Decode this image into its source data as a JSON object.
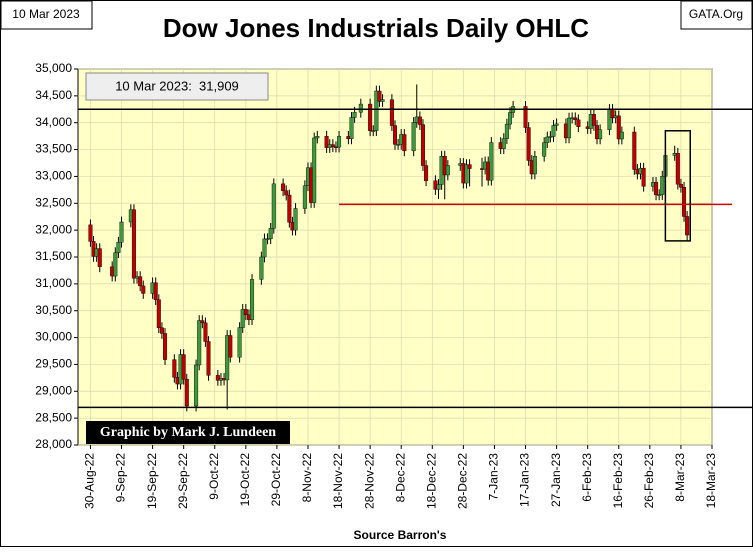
{
  "chart_data": {
    "type": "candlestick",
    "title": "Dow Jones Industrials Daily OHLC",
    "date_label": "10 Mar 2023",
    "source_label": "GATA.Org",
    "annotation": "10 Mar 2023:  31,909",
    "credit": "Graphic by Mark J. Lundeen",
    "xlabel": "Source Barron's",
    "up_color": "#3c9a3c",
    "down_color": "#c00000",
    "plot_background": "#ffffc6",
    "grid": true,
    "ylim": [
      28000,
      35000
    ],
    "yticks": [
      {
        "value": 28000,
        "label": "28,000"
      },
      {
        "value": 28500,
        "label": "28,500"
      },
      {
        "value": 29000,
        "label": "29,000"
      },
      {
        "value": 29500,
        "label": "29,500"
      },
      {
        "value": 30000,
        "label": "30,000"
      },
      {
        "value": 30500,
        "label": "30,500"
      },
      {
        "value": 31000,
        "label": "31,000"
      },
      {
        "value": 31500,
        "label": "31,500"
      },
      {
        "value": 32000,
        "label": "32,000"
      },
      {
        "value": 32500,
        "label": "32,500"
      },
      {
        "value": 33000,
        "label": "33,000"
      },
      {
        "value": 33500,
        "label": "33,500"
      },
      {
        "value": 34000,
        "label": "34,000"
      },
      {
        "value": 34500,
        "label": "34,500"
      },
      {
        "value": 35000,
        "label": "35,000"
      }
    ],
    "xlim": [
      "2022-08-26",
      "2023-03-18"
    ],
    "xticks": [
      {
        "value": "2022-08-30",
        "label": "30-Aug-22"
      },
      {
        "value": "2022-09-09",
        "label": "9-Sep-22"
      },
      {
        "value": "2022-09-19",
        "label": "19-Sep-22"
      },
      {
        "value": "2022-09-29",
        "label": "29-Sep-22"
      },
      {
        "value": "2022-10-09",
        "label": "9-Oct-22"
      },
      {
        "value": "2022-10-19",
        "label": "19-Oct-22"
      },
      {
        "value": "2022-10-29",
        "label": "29-Oct-22"
      },
      {
        "value": "2022-11-08",
        "label": "8-Nov-22"
      },
      {
        "value": "2022-11-18",
        "label": "18-Nov-22"
      },
      {
        "value": "2022-11-28",
        "label": "28-Nov-22"
      },
      {
        "value": "2022-12-08",
        "label": "8-Dec-22"
      },
      {
        "value": "2022-12-18",
        "label": "18-Dec-22"
      },
      {
        "value": "2022-12-28",
        "label": "28-Dec-22"
      },
      {
        "value": "2023-01-07",
        "label": "7-Jan-23"
      },
      {
        "value": "2023-01-17",
        "label": "17-Jan-23"
      },
      {
        "value": "2023-01-27",
        "label": "27-Jan-23"
      },
      {
        "value": "2023-02-06",
        "label": "6-Feb-23"
      },
      {
        "value": "2023-02-16",
        "label": "16-Feb-23"
      },
      {
        "value": "2023-02-26",
        "label": "26-Feb-23"
      },
      {
        "value": "2023-03-08",
        "label": "8-Mar-23"
      },
      {
        "value": "2023-03-18",
        "label": "18-Mar-23"
      }
    ],
    "hlines": [
      34250,
      28700
    ],
    "red_line": {
      "value": 32480,
      "from": "2022-11-18"
    },
    "highlight_box": {
      "x": [
        "2023-03-03",
        "2023-03-11"
      ],
      "y": [
        31800,
        33850
      ]
    },
    "x": [
      "2022-08-30",
      "2022-08-31",
      "2022-09-01",
      "2022-09-02",
      "2022-09-06",
      "2022-09-07",
      "2022-09-08",
      "2022-09-09",
      "2022-09-12",
      "2022-09-13",
      "2022-09-14",
      "2022-09-15",
      "2022-09-16",
      "2022-09-19",
      "2022-09-20",
      "2022-09-21",
      "2022-09-22",
      "2022-09-23",
      "2022-09-26",
      "2022-09-27",
      "2022-09-28",
      "2022-09-29",
      "2022-09-30",
      "2022-10-03",
      "2022-10-04",
      "2022-10-05",
      "2022-10-06",
      "2022-10-07",
      "2022-10-10",
      "2022-10-11",
      "2022-10-12",
      "2022-10-13",
      "2022-10-14",
      "2022-10-17",
      "2022-10-18",
      "2022-10-19",
      "2022-10-20",
      "2022-10-21",
      "2022-10-24",
      "2022-10-25",
      "2022-10-26",
      "2022-10-27",
      "2022-10-28",
      "2022-10-31",
      "2022-11-01",
      "2022-11-02",
      "2022-11-03",
      "2022-11-04",
      "2022-11-07",
      "2022-11-08",
      "2022-11-09",
      "2022-11-10",
      "2022-11-11",
      "2022-11-14",
      "2022-11-15",
      "2022-11-16",
      "2022-11-17",
      "2022-11-18",
      "2022-11-21",
      "2022-11-22",
      "2022-11-23",
      "2022-11-25",
      "2022-11-28",
      "2022-11-29",
      "2022-11-30",
      "2022-12-01",
      "2022-12-02",
      "2022-12-05",
      "2022-12-06",
      "2022-12-07",
      "2022-12-08",
      "2022-12-09",
      "2022-12-12",
      "2022-12-13",
      "2022-12-14",
      "2022-12-15",
      "2022-12-16",
      "2022-12-19",
      "2022-12-20",
      "2022-12-21",
      "2022-12-22",
      "2022-12-23",
      "2022-12-27",
      "2022-12-28",
      "2022-12-29",
      "2022-12-30",
      "2023-01-03",
      "2023-01-04",
      "2023-01-05",
      "2023-01-06",
      "2023-01-09",
      "2023-01-10",
      "2023-01-11",
      "2023-01-12",
      "2023-01-13",
      "2023-01-17",
      "2023-01-18",
      "2023-01-19",
      "2023-01-20",
      "2023-01-23",
      "2023-01-24",
      "2023-01-25",
      "2023-01-26",
      "2023-01-27",
      "2023-01-30",
      "2023-01-31",
      "2023-02-01",
      "2023-02-02",
      "2023-02-03",
      "2023-02-06",
      "2023-02-07",
      "2023-02-08",
      "2023-02-09",
      "2023-02-10",
      "2023-02-13",
      "2023-02-14",
      "2023-02-15",
      "2023-02-16",
      "2023-02-17",
      "2023-02-21",
      "2023-02-22",
      "2023-02-23",
      "2023-02-24",
      "2023-02-27",
      "2023-02-28",
      "2023-03-01",
      "2023-03-02",
      "2023-03-03",
      "2023-03-06",
      "2023-03-07",
      "2023-03-08",
      "2023-03-09",
      "2023-03-10"
    ],
    "open": [
      32099,
      31790,
      31510,
      31656,
      31318,
      31145,
      31581,
      31775,
      32152,
      32381,
      31105,
      31135,
      30962,
      30822,
      31020,
      30706,
      30184,
      30077,
      29590,
      29260,
      29135,
      29684,
      29226,
      28726,
      29490,
      30317,
      30274,
      29927,
      29297,
      29203,
      29240,
      29211,
      30039,
      29635,
      30186,
      30524,
      30424,
      30334,
      31083,
      31500,
      31837,
      31840,
      32034,
      32862,
      32733,
      32653,
      32148,
      32001,
      32403,
      32827,
      33161,
      32514,
      33716,
      33748,
      33537,
      33593,
      33553,
      33547,
      33746,
      33700,
      34098,
      34195,
      34347,
      33850,
      33853,
      34590,
      34395,
      34430,
      33947,
      33597,
      33598,
      33781,
      33476,
      34005,
      34108,
      33966,
      33203,
      32920,
      32758,
      32850,
      33377,
      33027,
      33204,
      33241,
      32876,
      33220,
      33147,
      33136,
      33270,
      32930,
      33631,
      33518,
      33704,
      33974,
      34190,
      34303,
      33910,
      33297,
      33045,
      33375,
      33630,
      33734,
      33744,
      33949,
      33978,
      33717,
      34086,
      34092,
      34054,
      33926,
      33891,
      34156,
      33949,
      33699,
      33869,
      34246,
      34089,
      34128,
      33697,
      33827,
      33130,
      33045,
      33154,
      32817,
      32889,
      32657,
      32662,
      33004,
      33391,
      33431,
      32856,
      32798,
      32255
    ],
    "high": [
      32199,
      31890,
      31756,
      31756,
      31418,
      31681,
      31875,
      32252,
      32481,
      32481,
      31235,
      31235,
      31062,
      31120,
      31120,
      30806,
      30284,
      30177,
      29690,
      29360,
      29784,
      29784,
      29326,
      29590,
      30417,
      30417,
      30374,
      30027,
      29397,
      29340,
      29340,
      30139,
      30139,
      30286,
      30624,
      30624,
      30524,
      31183,
      31600,
      31937,
      31940,
      32134,
      32962,
      32962,
      32833,
      32753,
      32248,
      32503,
      32927,
      33261,
      33261,
      33816,
      33848,
      33848,
      33693,
      33693,
      33653,
      33846,
      33846,
      34198,
      34295,
      34447,
      34447,
      33953,
      34690,
      34690,
      34530,
      34530,
      34047,
      33698,
      33881,
      33881,
      34105,
      34712,
      34208,
      34066,
      33303,
      33020,
      32950,
      33477,
      33477,
      33304,
      33341,
      33341,
      33320,
      33320,
      33347,
      33370,
      33370,
      33731,
      33731,
      33804,
      34074,
      34290,
      34403,
      34403,
      34010,
      33397,
      33475,
      33730,
      33834,
      33844,
      34049,
      34078,
      34078,
      34186,
      34192,
      34192,
      34154,
      34026,
      34256,
      34256,
      34049,
      33969,
      34346,
      34346,
      34228,
      34228,
      33927,
      33927,
      33230,
      33254,
      33254,
      32989,
      32989,
      32762,
      33104,
      33491,
      33572,
      33531,
      32956,
      32898,
      32355
    ],
    "low": [
      31690,
      31410,
      31410,
      31218,
      31045,
      31045,
      31481,
      31675,
      32052,
      31005,
      31005,
      30862,
      30722,
      30722,
      30606,
      30084,
      29977,
      29490,
      29160,
      29035,
      29035,
      29126,
      28626,
      28626,
      29390,
      30174,
      29827,
      29197,
      29103,
      29103,
      29111,
      28661,
      29535,
      29535,
      30086,
      30324,
      30234,
      30234,
      30983,
      31400,
      31737,
      31740,
      31934,
      32633,
      32553,
      32048,
      31901,
      31901,
      32303,
      32727,
      32414,
      32414,
      33616,
      33437,
      33437,
      33453,
      33447,
      33447,
      33600,
      33600,
      33998,
      34095,
      33750,
      33750,
      33753,
      34295,
      34295,
      33847,
      33497,
      33497,
      33498,
      33376,
      33376,
      33905,
      33866,
      33103,
      32820,
      32658,
      32581,
      32750,
      32573,
      32927,
      33104,
      32776,
      32776,
      32814,
      32812,
      33036,
      32830,
      32830,
      33418,
      33418,
      33604,
      33874,
      34090,
      33810,
      33197,
      32945,
      32945,
      33275,
      33530,
      33634,
      33644,
      33849,
      33617,
      33617,
      33986,
      33954,
      33826,
      33791,
      33791,
      33849,
      33599,
      33599,
      33769,
      33989,
      33989,
      33597,
      33597,
      33030,
      32945,
      32945,
      32717,
      32717,
      32557,
      32557,
      32562,
      32904,
      33291,
      32756,
      32698,
      32155,
      31809
    ],
    "close": [
      31790,
      31510,
      31656,
      31318,
      31145,
      31581,
      31775,
      32152,
      32381,
      31105,
      31135,
      30962,
      30822,
      31020,
      30706,
      30184,
      30077,
      29590,
      29260,
      29135,
      29684,
      29226,
      28726,
      29490,
      30317,
      30274,
      29927,
      29297,
      29203,
      29240,
      29211,
      30039,
      29635,
      30186,
      30524,
      30424,
      30334,
      31083,
      31500,
      31837,
      31840,
      32034,
      32862,
      32733,
      32653,
      32148,
      32001,
      32403,
      32827,
      33161,
      32514,
      33716,
      33748,
      33537,
      33593,
      33553,
      33547,
      33746,
      33700,
      34098,
      34195,
      34347,
      33850,
      33853,
      34590,
      34395,
      34430,
      33947,
      33597,
      33598,
      33781,
      33476,
      34005,
      34108,
      33966,
      33203,
      32920,
      32758,
      32850,
      33377,
      33027,
      33204,
      33241,
      32876,
      33220,
      33147,
      33136,
      33270,
      32930,
      33631,
      33518,
      33704,
      33974,
      34190,
      34303,
      33910,
      33297,
      33045,
      33375,
      33630,
      33734,
      33744,
      33949,
      33978,
      33717,
      34086,
      34092,
      34054,
      33926,
      33891,
      34156,
      33949,
      33699,
      33869,
      34246,
      34089,
      34128,
      33697,
      33827,
      33130,
      33045,
      33154,
      32817,
      32889,
      32657,
      32662,
      33004,
      33391,
      33431,
      32856,
      32798,
      32255,
      31909
    ]
  }
}
